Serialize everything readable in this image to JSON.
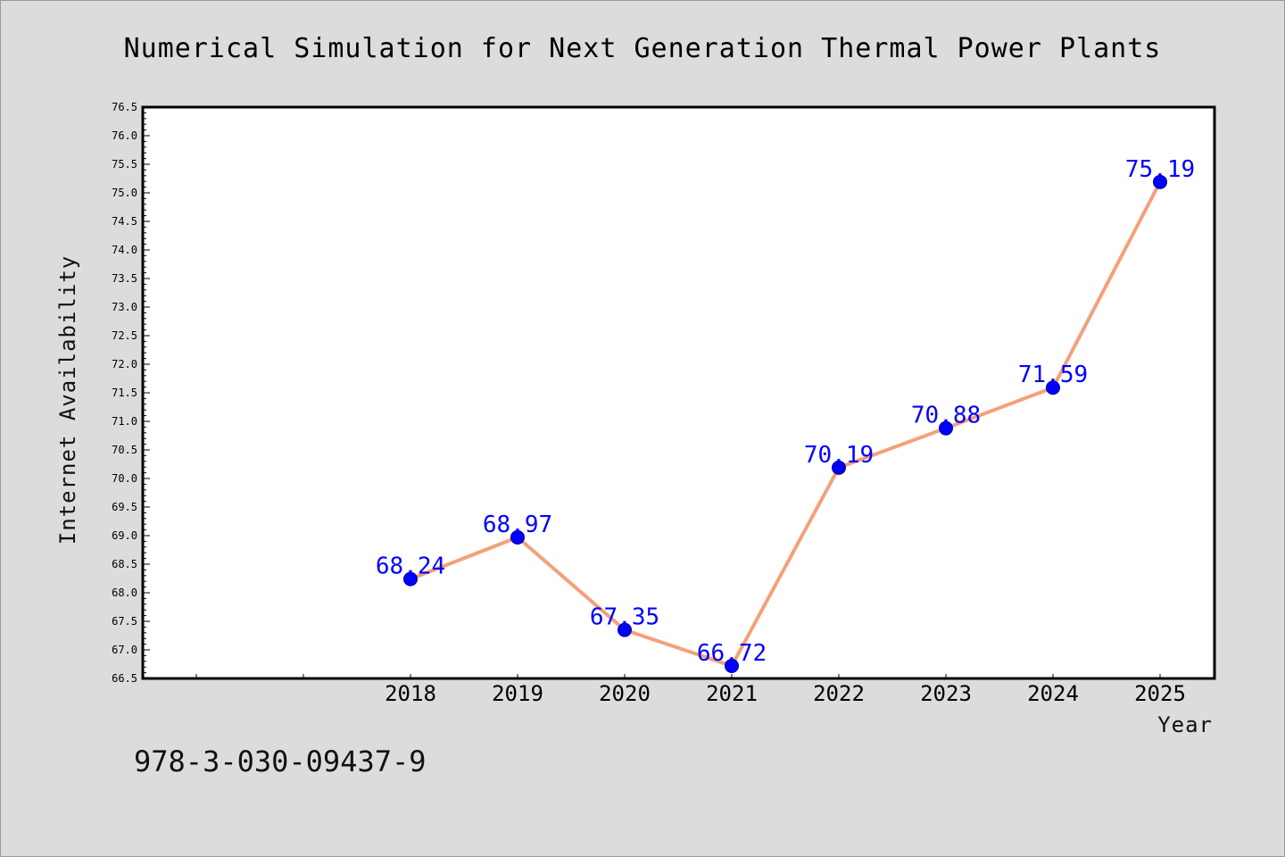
{
  "chart_data": {
    "type": "line",
    "title": "Numerical Simulation for Next Generation Thermal Power Plants",
    "xlabel": "Year",
    "ylabel": "Internet Availability",
    "ylim": [
      66.5,
      76.5
    ],
    "yticks": [
      "66.5",
      "67.0",
      "67.5",
      "68.0",
      "68.5",
      "69.0",
      "69.5",
      "70.0",
      "70.5",
      "71.0",
      "71.5",
      "72.0",
      "72.5",
      "73.0",
      "73.5",
      "74.0",
      "74.5",
      "75.0",
      "75.5",
      "76.0",
      "76.5"
    ],
    "categories": [
      "2018",
      "2019",
      "2020",
      "2021",
      "2022",
      "2023",
      "2024",
      "2025"
    ],
    "values": [
      68.24,
      68.97,
      67.35,
      66.72,
      70.19,
      70.88,
      71.59,
      75.19
    ],
    "data_labels": [
      "68.24",
      "68.97",
      "67.35",
      "66.72",
      "70.19",
      "70.88",
      "71.59",
      "75.19"
    ],
    "line_color": "#f4a07a",
    "marker_color": "#0000ff",
    "label_color": "#0000ff",
    "grid": false,
    "legend": "none"
  },
  "footer": {
    "isbn": "978-3-030-09437-9"
  }
}
